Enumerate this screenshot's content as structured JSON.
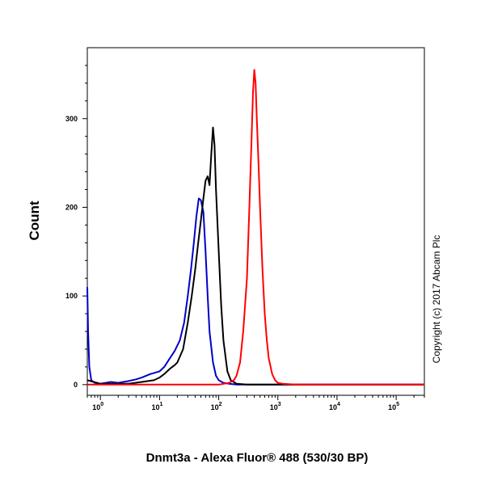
{
  "chart_data": {
    "type": "line",
    "xlabel": "Dnmt3a - Alexa Fluor® 488 (530/30 BP)",
    "ylabel": "Count",
    "xscale": "log",
    "xlim": [
      0.6,
      300000
    ],
    "ylim": [
      -12,
      380
    ],
    "x_ticks": [
      {
        "value": 1,
        "base": "10",
        "exp": "0"
      },
      {
        "value": 10,
        "base": "10",
        "exp": "1"
      },
      {
        "value": 100,
        "base": "10",
        "exp": "2"
      },
      {
        "value": 1000,
        "base": "10",
        "exp": "3"
      },
      {
        "value": 10000,
        "base": "10",
        "exp": "4"
      },
      {
        "value": 100000,
        "base": "10",
        "exp": "5"
      }
    ],
    "y_ticks": [
      {
        "value": 0,
        "label": "0"
      },
      {
        "value": 100,
        "label": "100"
      },
      {
        "value": 200,
        "label": "200"
      },
      {
        "value": 300,
        "label": "300"
      }
    ],
    "grid": false,
    "series": [
      {
        "color": "#0000cc",
        "x": [
          0.6,
          0.62,
          0.65,
          0.7,
          0.8,
          1,
          1.5,
          2,
          3,
          4,
          5,
          7,
          10,
          12,
          15,
          18,
          22,
          26,
          30,
          34,
          38,
          42,
          46,
          50,
          55,
          60,
          65,
          70,
          80,
          90,
          100,
          120,
          150,
          200,
          1000,
          300000
        ],
        "y": [
          110,
          60,
          20,
          5,
          2,
          1,
          3,
          2,
          4,
          6,
          8,
          12,
          15,
          20,
          30,
          38,
          50,
          70,
          100,
          130,
          160,
          190,
          210,
          208,
          195,
          150,
          100,
          60,
          25,
          10,
          5,
          2,
          1,
          0,
          0,
          0
        ]
      },
      {
        "color": "#000000",
        "x": [
          0.6,
          1,
          3,
          5,
          8,
          10,
          12,
          15,
          18,
          20,
          25,
          30,
          35,
          40,
          45,
          50,
          55,
          60,
          65,
          70,
          75,
          80,
          85,
          90,
          100,
          110,
          120,
          140,
          160,
          200,
          300,
          300000
        ],
        "y": [
          5,
          1,
          1,
          3,
          5,
          8,
          12,
          18,
          22,
          25,
          40,
          70,
          100,
          130,
          160,
          185,
          210,
          230,
          235,
          225,
          260,
          290,
          270,
          220,
          150,
          90,
          50,
          15,
          5,
          1,
          0,
          0
        ]
      },
      {
        "color": "#ff0000",
        "x": [
          0.6,
          100,
          150,
          180,
          200,
          230,
          260,
          300,
          330,
          360,
          380,
          400,
          420,
          440,
          470,
          500,
          550,
          600,
          650,
          700,
          800,
          900,
          1000,
          1200,
          2000,
          300000
        ],
        "y": [
          0,
          0,
          2,
          5,
          10,
          25,
          60,
          120,
          200,
          280,
          330,
          355,
          340,
          300,
          250,
          200,
          130,
          80,
          50,
          30,
          12,
          5,
          2,
          1,
          0,
          0
        ]
      }
    ]
  },
  "copyright": "Copyright (c) 2017 Abcam Plc"
}
